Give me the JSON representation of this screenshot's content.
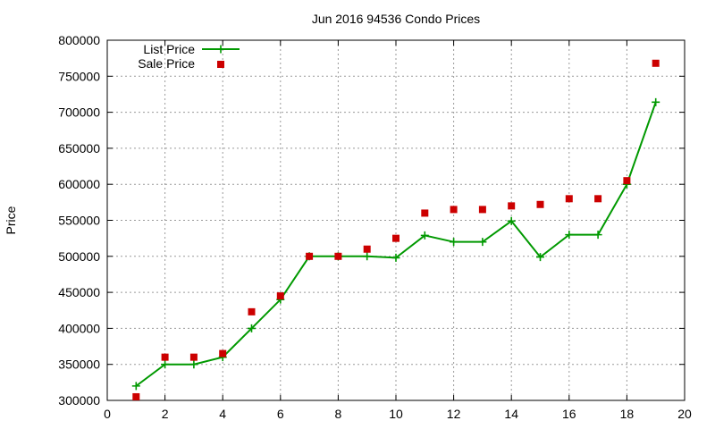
{
  "chart_data": {
    "type": "line",
    "title": "Jun 2016 94536 Condo Prices",
    "xlabel": "",
    "ylabel": "Price",
    "xlim": [
      0,
      20
    ],
    "ylim": [
      300000,
      800000
    ],
    "xticks": [
      0,
      2,
      4,
      6,
      8,
      10,
      12,
      14,
      16,
      18,
      20
    ],
    "yticks": [
      300000,
      350000,
      400000,
      450000,
      500000,
      550000,
      600000,
      650000,
      700000,
      750000,
      800000
    ],
    "grid": true,
    "legend_position": "top-left",
    "series": [
      {
        "name": "List Price",
        "style": "line-with-plus-markers",
        "color": "#009900",
        "x": [
          1,
          2,
          3,
          4,
          5,
          6,
          7,
          8,
          9,
          10,
          11,
          12,
          13,
          14,
          15,
          16,
          17,
          18,
          19
        ],
        "y": [
          320000,
          350000,
          350000,
          360000,
          400000,
          440000,
          500000,
          500000,
          500000,
          498000,
          529000,
          520000,
          520000,
          549000,
          499000,
          530000,
          530000,
          600000,
          714000
        ]
      },
      {
        "name": "Sale Price",
        "style": "square-markers",
        "color": "#cc0000",
        "x": [
          1,
          2,
          3,
          4,
          5,
          6,
          7,
          8,
          9,
          10,
          11,
          12,
          13,
          14,
          15,
          16,
          17,
          18,
          19
        ],
        "y": [
          305000,
          360000,
          360000,
          365000,
          423000,
          445000,
          500000,
          500000,
          510000,
          525000,
          560000,
          565000,
          565000,
          570000,
          572000,
          580000,
          580000,
          605000,
          768000
        ]
      }
    ]
  }
}
